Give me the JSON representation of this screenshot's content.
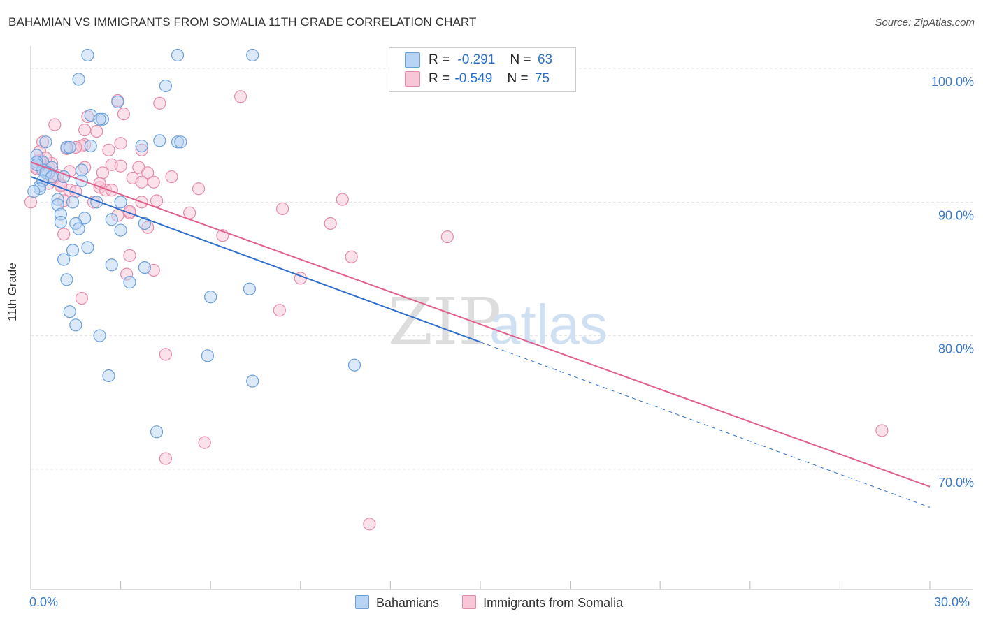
{
  "title": "BAHAMIAN VS IMMIGRANTS FROM SOMALIA 11TH GRADE CORRELATION CHART",
  "source": "Source: ZipAtlas.com",
  "watermark": {
    "zip": "ZIP",
    "atlas": "atlas"
  },
  "legend": {
    "rows": [
      {
        "r_label": "R =",
        "r_value": "-0.291",
        "n_label": "N =",
        "n_value": "63"
      },
      {
        "r_label": "R =",
        "r_value": "-0.549",
        "n_label": "N =",
        "n_value": "75"
      }
    ]
  },
  "bottom_legend": {
    "series1": "Bahamians",
    "series2": "Immigrants from Somalia"
  },
  "colors": {
    "blue_fill": "#b8d4f4",
    "blue_stroke": "#6a9fdc",
    "blue_line": "#2f6fcc",
    "pink_fill": "#f8c6d6",
    "pink_stroke": "#e68aa9",
    "pink_line": "#e0608e",
    "axis_text": "#3a78c9",
    "grid": "#e3e3e3"
  },
  "chart_data": {
    "type": "scatter",
    "title": "BAHAMIAN VS IMMIGRANTS FROM SOMALIA 11TH GRADE CORRELATION CHART",
    "xlabel": "",
    "ylabel": "11th Grade",
    "xlim": [
      0.0,
      30.0
    ],
    "ylim": [
      60.0,
      102.0
    ],
    "x_tick_labels": [
      "0.0%",
      "30.0%"
    ],
    "y_ticks": [
      100.0,
      90.0,
      80.0,
      70.0
    ],
    "y_tick_labels": [
      "100.0%",
      "90.0%",
      "80.0%",
      "70.0%"
    ],
    "grid": true,
    "series": [
      {
        "name": "Bahamians",
        "r": -0.291,
        "n": 63,
        "trend": {
          "x0": 0.0,
          "y0": 91.9,
          "x1_solid": 15.0,
          "x1": 30.0,
          "slope": -0.825
        },
        "points": [
          [
            1.9,
            101.0
          ],
          [
            4.9,
            101.0
          ],
          [
            7.4,
            101.0
          ],
          [
            1.6,
            99.2
          ],
          [
            4.5,
            98.7
          ],
          [
            2.9,
            97.5
          ],
          [
            2.0,
            96.5
          ],
          [
            2.4,
            96.2
          ],
          [
            2.3,
            96.2
          ],
          [
            0.5,
            94.5
          ],
          [
            4.3,
            94.6
          ],
          [
            4.9,
            94.5
          ],
          [
            5.0,
            94.5
          ],
          [
            3.7,
            94.2
          ],
          [
            1.2,
            94.1
          ],
          [
            1.3,
            94.1
          ],
          [
            2.0,
            94.2
          ],
          [
            0.2,
            93.5
          ],
          [
            0.4,
            93.0
          ],
          [
            0.2,
            93.0
          ],
          [
            0.7,
            92.6
          ],
          [
            0.4,
            92.4
          ],
          [
            0.6,
            92.2
          ],
          [
            1.7,
            92.4
          ],
          [
            0.5,
            92.2
          ],
          [
            0.7,
            91.9
          ],
          [
            1.1,
            91.9
          ],
          [
            0.3,
            91.2
          ],
          [
            0.4,
            91.6
          ],
          [
            1.7,
            91.6
          ],
          [
            0.3,
            91.0
          ],
          [
            0.9,
            90.2
          ],
          [
            1.4,
            90.0
          ],
          [
            2.2,
            90.0
          ],
          [
            3.0,
            90.0
          ],
          [
            0.9,
            89.8
          ],
          [
            1.0,
            89.1
          ],
          [
            1.8,
            88.8
          ],
          [
            2.7,
            88.7
          ],
          [
            1.0,
            88.5
          ],
          [
            3.8,
            88.4
          ],
          [
            1.5,
            88.4
          ],
          [
            1.6,
            88.0
          ],
          [
            3.0,
            87.9
          ],
          [
            1.9,
            86.6
          ],
          [
            1.4,
            86.4
          ],
          [
            1.1,
            85.7
          ],
          [
            2.7,
            85.3
          ],
          [
            3.8,
            85.1
          ],
          [
            3.3,
            84.0
          ],
          [
            1.2,
            84.2
          ],
          [
            7.3,
            83.5
          ],
          [
            6.0,
            82.9
          ],
          [
            1.3,
            81.8
          ],
          [
            1.5,
            80.8
          ],
          [
            2.3,
            80.0
          ],
          [
            5.9,
            78.5
          ],
          [
            10.8,
            77.8
          ],
          [
            2.6,
            77.0
          ],
          [
            7.4,
            76.6
          ],
          [
            4.2,
            72.8
          ],
          [
            0.1,
            90.8
          ],
          [
            0.2,
            92.8
          ]
        ]
      },
      {
        "name": "Immigrants from Somalia",
        "r": -0.549,
        "n": 75,
        "trend": {
          "x0": 0.0,
          "y0": 93.0,
          "x1": 30.0,
          "y1": 68.7,
          "slope": -0.81
        },
        "points": [
          [
            7.0,
            97.9
          ],
          [
            4.3,
            97.4
          ],
          [
            2.9,
            97.6
          ],
          [
            3.1,
            96.6
          ],
          [
            1.9,
            96.4
          ],
          [
            1.8,
            95.4
          ],
          [
            2.2,
            95.3
          ],
          [
            0.8,
            95.8
          ],
          [
            0.4,
            94.5
          ],
          [
            1.8,
            94.3
          ],
          [
            1.7,
            94.2
          ],
          [
            1.5,
            94.1
          ],
          [
            1.2,
            94.0
          ],
          [
            0.3,
            93.8
          ],
          [
            3.0,
            94.4
          ],
          [
            2.6,
            93.9
          ],
          [
            3.7,
            93.9
          ],
          [
            0.4,
            93.0
          ],
          [
            0.6,
            92.6
          ],
          [
            0.7,
            92.9
          ],
          [
            2.7,
            92.8
          ],
          [
            3.0,
            92.7
          ],
          [
            3.6,
            92.6
          ],
          [
            0.2,
            92.6
          ],
          [
            1.3,
            92.3
          ],
          [
            3.9,
            92.2
          ],
          [
            2.4,
            92.2
          ],
          [
            0.8,
            91.8
          ],
          [
            3.4,
            91.8
          ],
          [
            4.7,
            91.9
          ],
          [
            1.0,
            91.3
          ],
          [
            2.3,
            91.1
          ],
          [
            0.6,
            91.4
          ],
          [
            3.7,
            91.5
          ],
          [
            4.1,
            91.5
          ],
          [
            1.3,
            90.9
          ],
          [
            2.5,
            90.9
          ],
          [
            2.7,
            90.9
          ],
          [
            5.6,
            91.0
          ],
          [
            0.0,
            90.0
          ],
          [
            1.5,
            90.8
          ],
          [
            1.1,
            90.1
          ],
          [
            3.7,
            90.0
          ],
          [
            2.1,
            90.0
          ],
          [
            4.2,
            90.1
          ],
          [
            10.4,
            90.2
          ],
          [
            8.4,
            89.5
          ],
          [
            3.3,
            89.2
          ],
          [
            2.9,
            89.0
          ],
          [
            5.3,
            89.2
          ],
          [
            10.0,
            88.4
          ],
          [
            3.9,
            88.1
          ],
          [
            1.1,
            87.6
          ],
          [
            6.4,
            87.5
          ],
          [
            13.9,
            87.4
          ],
          [
            3.3,
            86.0
          ],
          [
            10.7,
            85.9
          ],
          [
            4.1,
            84.9
          ],
          [
            3.2,
            84.6
          ],
          [
            9.0,
            84.3
          ],
          [
            1.7,
            82.8
          ],
          [
            8.3,
            81.9
          ],
          [
            4.5,
            78.6
          ],
          [
            5.8,
            72.0
          ],
          [
            4.5,
            70.8
          ],
          [
            28.4,
            72.9
          ],
          [
            11.3,
            65.9
          ],
          [
            0.5,
            93.3
          ],
          [
            0.3,
            93.1
          ],
          [
            0.9,
            92.0
          ],
          [
            1.8,
            92.6
          ],
          [
            2.3,
            91.4
          ],
          [
            0.2,
            92.5
          ],
          [
            1.0,
            91.2
          ],
          [
            3.3,
            89.3
          ]
        ]
      }
    ]
  }
}
